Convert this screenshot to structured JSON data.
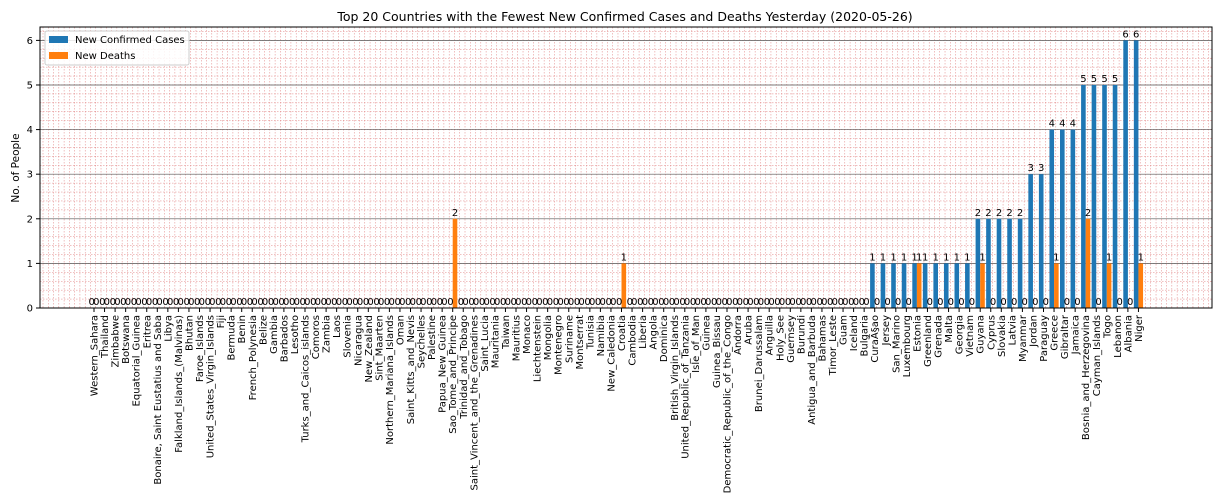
{
  "chart_data": {
    "type": "bar",
    "title": "Top 20 Countries with the Fewest New Confirmed Cases and Deaths Yesterday (2020-05-26)",
    "xlabel": "",
    "ylabel": "No. of People",
    "ylim": [
      0,
      6.3
    ],
    "yticks": [
      "0",
      "1",
      "2",
      "3",
      "4",
      "5",
      "6"
    ],
    "grid": true,
    "legend_position": "upper-left",
    "categories": [
      "Western_Sahara",
      "Thailand",
      "Zimbabwe",
      "Botswana",
      "Equatorial_Guinea",
      "Eritrea",
      "Bonaire, Saint Eustatius and Saba",
      "Libya",
      "Falkland_Islands_(Malvinas)",
      "Bhutan",
      "Faroe_Islands",
      "United_States_Virgin_Islands",
      "Fiji",
      "Bermuda",
      "Benin",
      "French_Polynesia",
      "Belize",
      "Gambia",
      "Barbados",
      "Lesotho",
      "Turks_and_Caicos_islands",
      "Comoros",
      "Zambia",
      "Laos",
      "Slovenia",
      "Nicaragua",
      "New_Zealand",
      "Sint_Maarten",
      "Northern_Mariana_Islands",
      "Oman",
      "Saint_Kitts_and_Nevis",
      "Seychelles",
      "Palestine",
      "Papua_New_Guinea",
      "Sao_Tome_and_Principe",
      "Trinidad_and_Tobago",
      "Saint_Vincent_and_the_Grenadines",
      "Saint_Lucia",
      "Mauritania",
      "Taiwan",
      "Mauritius",
      "Monaco",
      "Liechtenstein",
      "Mongolia",
      "Montenegro",
      "Suriname",
      "Montserrat",
      "Tunisia",
      "Namibia",
      "New_Caledonia",
      "Croatia",
      "Cambodia",
      "Liberia",
      "Angola",
      "Dominica",
      "British_Virgin_Islands",
      "United_Republic_of_Tanzania",
      "Isle_of_Man",
      "Guinea",
      "Guinea_Bissau",
      "Democratic_Republic_of_the_Congo",
      "Andorra",
      "Aruba",
      "Brunei_Darussalam",
      "Anguilla",
      "Holy_See",
      "Guernsey",
      "Burundi",
      "Antigua_and_Barbuda",
      "Bahamas",
      "Timor_Leste",
      "Guam",
      "Iceland",
      "Bulgaria",
      "CuraÃ§ao",
      "Jersey",
      "San_Marino",
      "Luxembourg",
      "Estonia",
      "Greenland",
      "Grenada",
      "Malta",
      "Georgia",
      "Vietnam",
      "Guyana",
      "Cyprus",
      "Slovakia",
      "Latvia",
      "Myanmar",
      "Jordan",
      "Paraguay",
      "Greece",
      "Gibraltar",
      "Jamaica",
      "Bosnia_and_Herzegovina",
      "Cayman_Islands",
      "Togo",
      "Lebanon",
      "Albania",
      "Niger"
    ],
    "series": [
      {
        "name": "New Confirmed Cases",
        "color": "#1f77b4",
        "values": [
          0,
          0,
          0,
          0,
          0,
          0,
          0,
          0,
          0,
          0,
          0,
          0,
          0,
          0,
          0,
          0,
          0,
          0,
          0,
          0,
          0,
          0,
          0,
          0,
          0,
          0,
          0,
          0,
          0,
          0,
          0,
          0,
          0,
          0,
          0,
          0,
          0,
          0,
          0,
          0,
          0,
          0,
          0,
          0,
          0,
          0,
          0,
          0,
          0,
          0,
          0,
          0,
          0,
          0,
          0,
          0,
          0,
          0,
          0,
          0,
          0,
          0,
          0,
          0,
          0,
          0,
          0,
          0,
          0,
          0,
          0,
          0,
          0,
          0,
          1,
          1,
          1,
          1,
          1,
          1,
          1,
          1,
          1,
          1,
          2,
          2,
          2,
          2,
          2,
          3,
          3,
          4,
          4,
          4,
          5,
          5,
          5,
          5,
          6,
          6
        ]
      },
      {
        "name": "New Deaths",
        "color": "#ff7f0e",
        "values": [
          0,
          0,
          0,
          0,
          0,
          0,
          0,
          0,
          0,
          0,
          0,
          0,
          0,
          0,
          0,
          0,
          0,
          0,
          0,
          0,
          0,
          0,
          0,
          0,
          0,
          0,
          0,
          0,
          0,
          0,
          0,
          0,
          0,
          0,
          2,
          0,
          0,
          0,
          0,
          0,
          0,
          0,
          0,
          0,
          0,
          0,
          0,
          0,
          0,
          0,
          1,
          0,
          0,
          0,
          0,
          0,
          0,
          0,
          0,
          0,
          0,
          0,
          0,
          0,
          0,
          0,
          0,
          0,
          0,
          0,
          0,
          0,
          0,
          0,
          0,
          0,
          0,
          0,
          1,
          0,
          0,
          0,
          0,
          0,
          1,
          0,
          0,
          0,
          0,
          0,
          0,
          1,
          0,
          0,
          2,
          0,
          1,
          0,
          0,
          1
        ]
      }
    ]
  }
}
